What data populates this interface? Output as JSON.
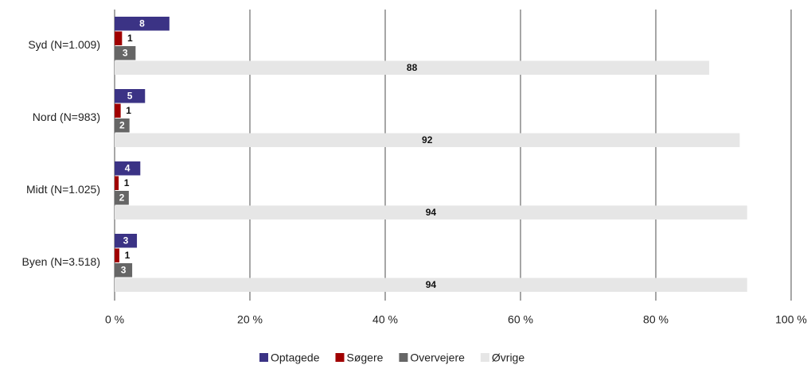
{
  "chart_data": {
    "type": "hbar",
    "categories": [
      "Syd (N=1.009)",
      "Nord (N=983)",
      "Midt (N=1.025)",
      "Byen (N=3.518)"
    ],
    "series": [
      {
        "name": "Optagede",
        "color": "#3b3385",
        "values": [
          8.1,
          4.5,
          3.8,
          3.3
        ],
        "value_labels": [
          "8",
          "5",
          "4",
          "3"
        ]
      },
      {
        "name": "Søgere",
        "color": "#a00000",
        "values": [
          1.1,
          0.9,
          0.6,
          0.7
        ],
        "value_labels": [
          "1",
          "1",
          "1",
          "1"
        ]
      },
      {
        "name": "Overvejere",
        "color": "#666666",
        "values": [
          3.1,
          2.2,
          2.1,
          2.6
        ],
        "value_labels": [
          "3",
          "2",
          "2",
          "3"
        ]
      },
      {
        "name": "Øvrige",
        "color": "#e6e6e6",
        "values": [
          87.9,
          92.4,
          93.5,
          93.5
        ],
        "value_labels": [
          "88",
          "92",
          "94",
          "94"
        ]
      }
    ],
    "xlim": [
      0,
      100
    ],
    "xticks": [
      {
        "value": 0,
        "label": "0 %"
      },
      {
        "value": 20,
        "label": "20 %"
      },
      {
        "value": 40,
        "label": "40 %"
      },
      {
        "value": 60,
        "label": "60 %"
      },
      {
        "value": 80,
        "label": "80 %"
      },
      {
        "value": 100,
        "label": "100 %"
      }
    ],
    "grid": true,
    "legend": "bottom"
  }
}
